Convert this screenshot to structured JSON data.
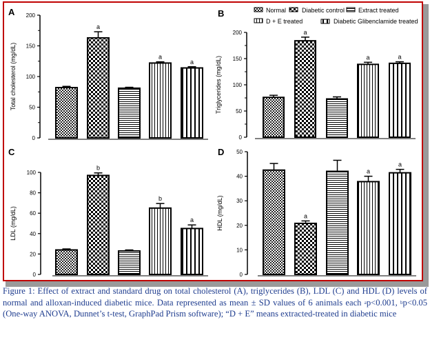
{
  "figure": {
    "border_color": "#c00000",
    "caption": {
      "part1": "Figure 1: Effect of extract and standard drug on total cholesterol (A), triglycerides (B), LDL (C) and HDL (D) levels of normal and alloxan-induced diabetic mice. Data represented as mean ± SD values of 6 animals each ",
      "sup_a": "a",
      "part2": "p<0.001, ",
      "sup_b": "b",
      "part3": "p<0.05 (One-way ANOVA, Dunnet’s t-test, GraphPad Prism software); “D + E” means extracted-treated in diabetic mice"
    },
    "caption_color": "#1f3d8f"
  },
  "legend": {
    "position": "top-right of panel B",
    "items": [
      {
        "label": "Normal",
        "pattern": "fine-dots"
      },
      {
        "label": "Diabetic control",
        "pattern": "checker"
      },
      {
        "label": "Extract treated",
        "pattern": "horizontal-lines"
      },
      {
        "label": "D + E treated",
        "pattern": "fine-vertical-lines"
      },
      {
        "label": "Diabetic Glibenclamide treated",
        "pattern": "wide-vertical-lines"
      }
    ]
  },
  "chart_data": [
    {
      "type": "bar",
      "panel": "A",
      "title": "",
      "ylabel": "Total cholesterol (mg/dL)",
      "xlabel": "",
      "ylim": [
        0,
        200
      ],
      "yticks": [
        0,
        50,
        100,
        150,
        200
      ],
      "categories": [
        "Normal",
        "Diabetic control",
        "Extract treated",
        "D + E treated",
        "Diabetic Glibenclamide treated"
      ],
      "values": [
        82,
        163,
        81,
        122,
        114
      ],
      "errors": [
        2,
        10,
        1.5,
        2,
        2
      ],
      "annotations": [
        "",
        "a",
        "",
        "a",
        "a"
      ]
    },
    {
      "type": "bar",
      "panel": "B",
      "title": "",
      "ylabel": "Triglycerides (mg/dL)",
      "xlabel": "",
      "ylim": [
        0,
        200
      ],
      "yticks": [
        0,
        50,
        100,
        150,
        200
      ],
      "categories": [
        "Normal",
        "Diabetic control",
        "Extract treated",
        "D + E treated",
        "Diabetic Glibenclamide treated"
      ],
      "values": [
        76,
        184,
        73,
        139,
        141
      ],
      "errors": [
        4,
        7,
        4,
        4,
        3
      ],
      "annotations": [
        "",
        "a",
        "",
        "a",
        "a"
      ]
    },
    {
      "type": "bar",
      "panel": "C",
      "title": "",
      "ylabel": "LDL (mg/dL)",
      "xlabel": "",
      "ylim": [
        0,
        100
      ],
      "yticks": [
        0,
        20,
        40,
        60,
        80,
        100
      ],
      "categories": [
        "Normal",
        "Diabetic control",
        "Extract treated",
        "D + E treated",
        "Diabetic Glibenclamide treated"
      ],
      "values": [
        24,
        97,
        23,
        65,
        45
      ],
      "errors": [
        1,
        2.5,
        1,
        4.5,
        3.5
      ],
      "annotations": [
        "",
        "b",
        "",
        "b",
        "a"
      ]
    },
    {
      "type": "bar",
      "panel": "D",
      "title": "",
      "ylabel": "HDL (mg/dL)",
      "xlabel": "",
      "ylim": [
        0,
        50
      ],
      "yticks": [
        0,
        10,
        20,
        30,
        40,
        50
      ],
      "categories": [
        "Normal",
        "Diabetic control",
        "Extract treated",
        "D + E treated",
        "Diabetic Glibenclamide treated"
      ],
      "values": [
        42.5,
        20.8,
        42,
        37.8,
        41.4
      ],
      "errors": [
        2.7,
        1,
        4.5,
        2.2,
        1.4
      ],
      "annotations": [
        "",
        "a",
        "",
        "a",
        "a"
      ]
    }
  ]
}
